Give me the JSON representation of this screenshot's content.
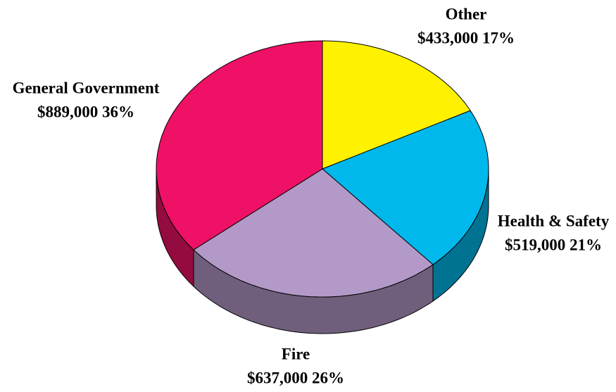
{
  "chart_data": {
    "type": "pie3d",
    "categories": [
      "Other",
      "Health & Safety",
      "Fire",
      "General Government"
    ],
    "values": [
      433000,
      519000,
      637000,
      889000
    ],
    "value_labels": [
      "$433,000 17%",
      "$519,000 21%",
      "$637,000 26%",
      "$889,000 36%"
    ],
    "colors": [
      "#fff200",
      "#00b8eb",
      "#b399c8",
      "#ee1166"
    ]
  }
}
